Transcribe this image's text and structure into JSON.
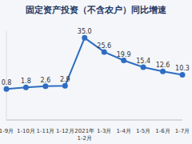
{
  "chart_data": {
    "type": "line",
    "title": "固定资产投资（不含农户）同比增速",
    "categories": [
      "1-9月",
      "1-10月",
      "1-11月",
      "1-12月",
      "2021年 1-2月",
      "1-3月",
      "1-4月",
      "1-5月",
      "1-6月",
      "1-7月"
    ],
    "values": [
      0.8,
      1.8,
      2.6,
      2.9,
      35.0,
      25.6,
      19.9,
      15.4,
      12.6,
      10.3
    ],
    "value_labels": [
      "0.8",
      "1.8",
      "2.6",
      "2.9",
      "35.0",
      "25.6",
      "19.9",
      "15.4",
      "12.6",
      "10.3"
    ],
    "color": "#2e6dc2",
    "marker": "circle",
    "ylim": [
      -20,
      40
    ],
    "data_labels": true,
    "grid": false,
    "tick_labels": "x"
  }
}
